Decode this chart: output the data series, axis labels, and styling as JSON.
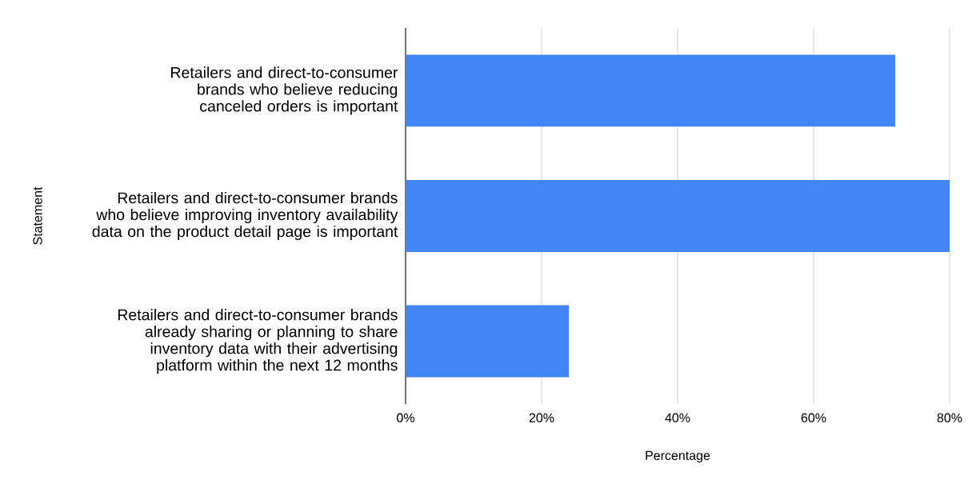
{
  "chart_data": {
    "type": "bar",
    "orientation": "horizontal",
    "xlabel": "Percentage",
    "ylabel": "Statement",
    "categories": [
      "Retailers and direct-to-consumer brands who believe reducing canceled orders is important",
      "Retailers and direct-to-consumer brands who believe improving inventory availability data on the product detail page is important",
      "Retailers and direct-to-consumer brands already sharing or planning to share inventory data with their advertising platform within the next 12 months"
    ],
    "values": [
      72,
      80,
      24
    ],
    "color": "#4285f4",
    "xlim": [
      0,
      80
    ],
    "xticks": [
      {
        "value": 0,
        "label": "0%"
      },
      {
        "value": 20,
        "label": "20%"
      },
      {
        "value": 40,
        "label": "40%"
      },
      {
        "value": 60,
        "label": "60%"
      },
      {
        "value": 80,
        "label": "80%"
      }
    ],
    "grid": "x"
  }
}
